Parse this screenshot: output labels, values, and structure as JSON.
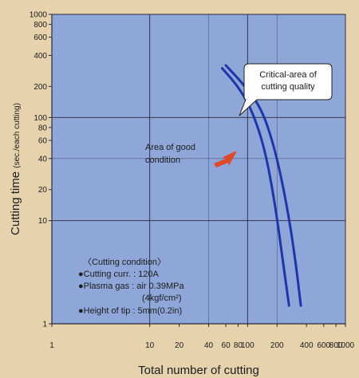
{
  "chart_data": {
    "type": "line",
    "xlabel": "Total number of cutting",
    "ylabel": "Cutting time",
    "ylabel_unit": "(sec./each cutting)",
    "xscale": "log",
    "yscale": "log",
    "xlim": [
      1,
      1000
    ],
    "ylim": [
      1,
      1000
    ],
    "x_ticks": [
      {
        "value": 1,
        "label": "1"
      },
      {
        "value": 10,
        "label": "10"
      },
      {
        "value": 20,
        "label": "20"
      },
      {
        "value": 40,
        "label": "40"
      },
      {
        "value": 60,
        "label": "60"
      },
      {
        "value": 80,
        "label": "80"
      },
      {
        "value": 100,
        "label": "100"
      },
      {
        "value": 200,
        "label": "200"
      },
      {
        "value": 400,
        "label": "400"
      },
      {
        "value": 600,
        "label": "600"
      },
      {
        "value": 800,
        "label": "800"
      },
      {
        "value": 1000,
        "label": "1000"
      }
    ],
    "y_ticks": [
      {
        "value": 1,
        "label": "1"
      },
      {
        "value": 10,
        "label": "10"
      },
      {
        "value": 20,
        "label": "20"
      },
      {
        "value": 40,
        "label": "40"
      },
      {
        "value": 60,
        "label": "60"
      },
      {
        "value": 80,
        "label": "80"
      },
      {
        "value": 100,
        "label": "100"
      },
      {
        "value": 200,
        "label": "200"
      },
      {
        "value": 400,
        "label": "400"
      },
      {
        "value": 600,
        "label": "600"
      },
      {
        "value": 800,
        "label": "800"
      },
      {
        "value": 1000,
        "label": "1000"
      }
    ],
    "grid_major_x": [
      10,
      100,
      1000
    ],
    "grid_major_y": [
      10,
      100,
      1000
    ],
    "series": [
      {
        "x": [
          55,
          80,
          110,
          150,
          190,
          230,
          265
        ],
        "y": [
          300,
          200,
          120,
          50,
          15,
          4,
          1.5
        ]
      },
      {
        "x": [
          60,
          95,
          140,
          190,
          250,
          310,
          350
        ],
        "y": [
          320,
          200,
          120,
          50,
          15,
          4,
          1.5
        ]
      }
    ],
    "colors": {
      "background": "#e6d3ad",
      "plot": "#8fa6d9",
      "grid": "#2a2a3a",
      "curve": "#1f36a8",
      "arrow": "#e0482a"
    },
    "annotations": {
      "callout": [
        "Critical-area of",
        "cutting quality"
      ],
      "good_area": [
        "Area of good",
        "condition"
      ],
      "conditions": [
        "〈Cutting condition〉",
        "●Cutting curr. : 120A",
        "●Plasma gas : air 0.39MPa",
        "(4kgf/cm²)",
        "●Height of tip : 5mm(0.2in)"
      ]
    }
  }
}
